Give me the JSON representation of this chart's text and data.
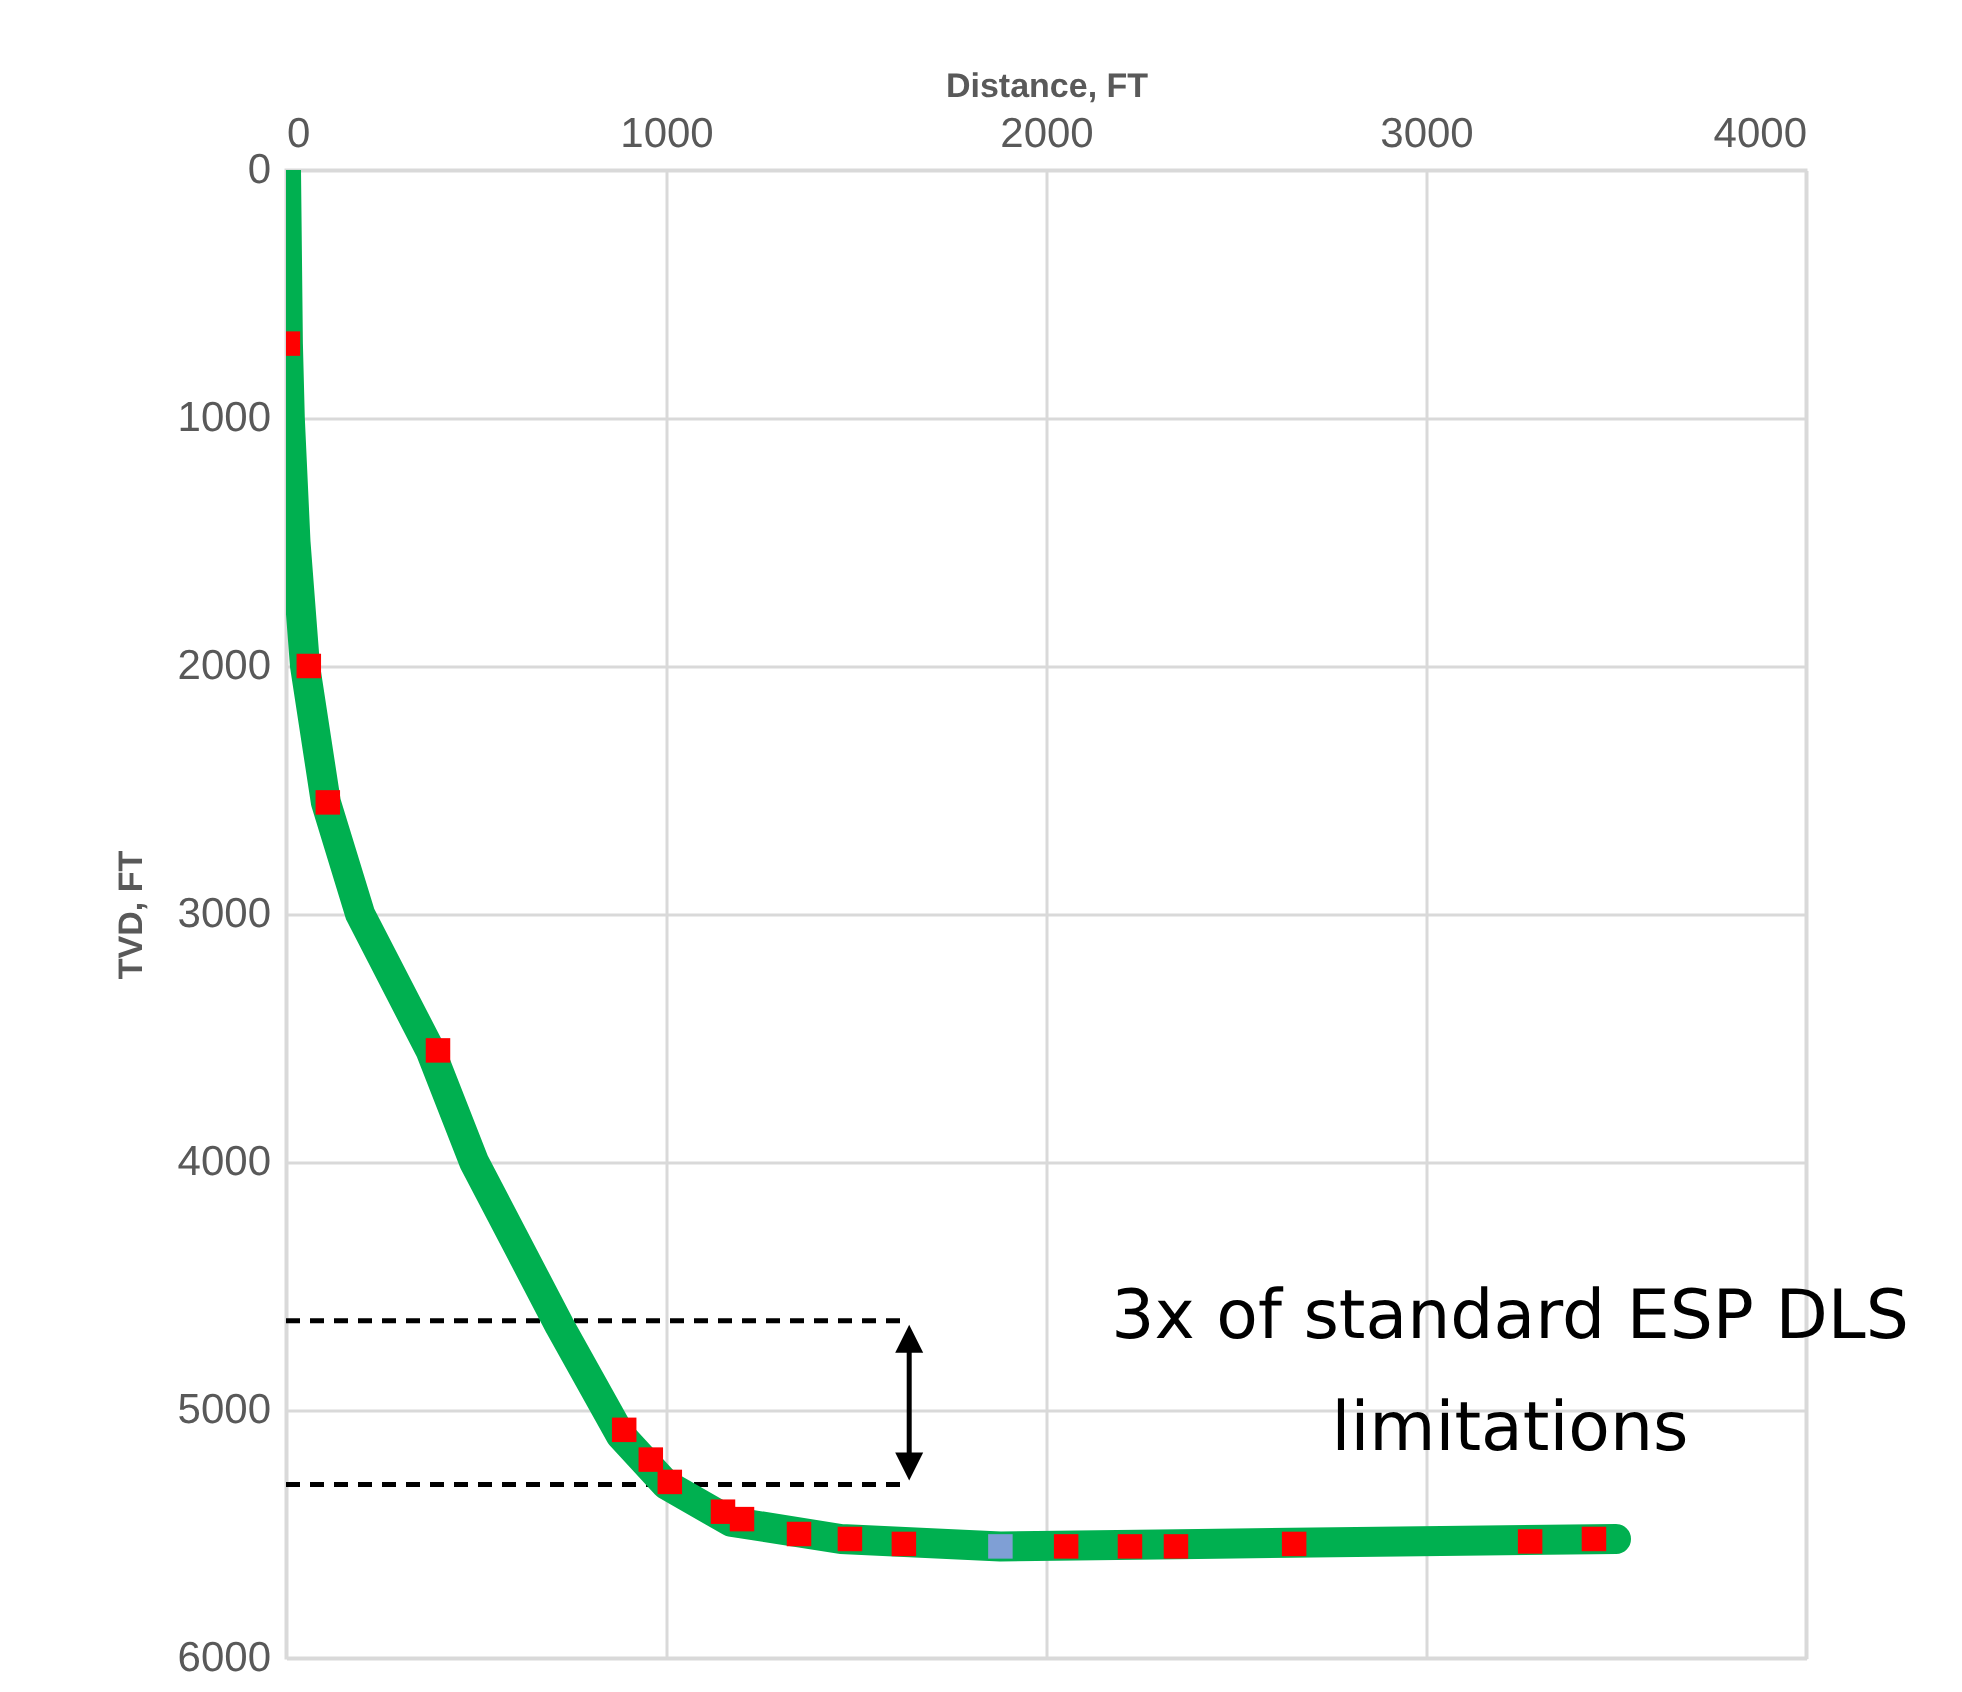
{
  "chart_data": {
    "type": "line",
    "xlabel": "Distance, FT",
    "ylabel": "TVD, FT",
    "xlim": [
      0,
      4000
    ],
    "xticks": [
      0,
      1000,
      2000,
      3000,
      4000
    ],
    "ylim": [
      6000,
      0
    ],
    "yticks": [
      0,
      1000,
      2000,
      3000,
      4000,
      5000,
      6000
    ],
    "grid": true,
    "series": [
      {
        "type": "line",
        "color": "#00b050",
        "x": [
          0,
          5,
          10,
          25,
          50,
          105,
          195,
          380,
          495,
          720,
          880,
          1000,
          1170,
          1460,
          1880,
          2400,
          2930,
          3500
        ],
        "values": [
          0,
          700,
          1000,
          1500,
          2000,
          2550,
          3000,
          3550,
          4000,
          4660,
          5100,
          5300,
          5450,
          5520,
          5550,
          5540,
          5530,
          5520
        ]
      },
      {
        "type": "scatter",
        "color": "#ff0000",
        "marker": "square",
        "x": [
          5,
          60,
          110,
          400,
          890,
          960,
          1010,
          1150,
          1200,
          1350,
          1484,
          1626,
          2053,
          2221,
          2342,
          2653,
          3274,
          3442
        ],
        "values": [
          700,
          2000,
          2550,
          3550,
          5080,
          5200,
          5290,
          5410,
          5440,
          5500,
          5520,
          5540,
          5550,
          5550,
          5550,
          5540,
          5530,
          5520
        ]
      },
      {
        "type": "scatter",
        "color": "#7f9fd5",
        "marker": "square",
        "x": [
          1880
        ],
        "values": [
          5550
        ]
      }
    ],
    "ref_lines": [
      {
        "axis": "y",
        "value": 4640,
        "color": "#000000",
        "line_style": "dashed"
      },
      {
        "axis": "y",
        "value": 5300,
        "color": "#000000",
        "line_style": "dashed"
      }
    ],
    "annotations": [
      {
        "text": "3x of standard ESP DLS limitations",
        "x": 1640,
        "y": 4640
      }
    ]
  }
}
